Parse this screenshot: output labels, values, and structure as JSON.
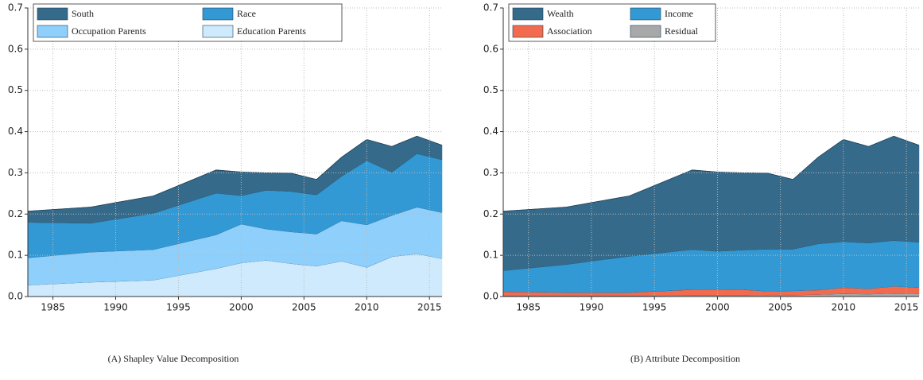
{
  "chart_data": [
    {
      "type": "area",
      "stacked": true,
      "caption": "(A) Shapley Value Decomposition",
      "x": [
        1983,
        1988,
        1993,
        1998,
        2000,
        2002,
        2004,
        2006,
        2008,
        2010,
        2012,
        2014,
        2016
      ],
      "xlim": [
        1983,
        2016
      ],
      "xticks": [
        1985,
        1990,
        1995,
        2000,
        2005,
        2010,
        2015
      ],
      "ylim": [
        0,
        0.7
      ],
      "yticks": [
        {
          "value": 0,
          "label": "0.0"
        },
        0.1,
        0.2,
        0.3,
        0.4,
        0.5,
        0.6,
        0.7
      ],
      "grid": true,
      "legend": "top-left",
      "series": [
        {
          "name": "Education Parents",
          "color": "#cfeafc",
          "values": [
            0.028,
            0.035,
            0.04,
            0.068,
            0.082,
            0.088,
            0.08,
            0.074,
            0.086,
            0.071,
            0.097,
            0.104,
            0.092
          ]
        },
        {
          "name": "Occupation Parents",
          "color": "#8fcffb",
          "values": [
            0.066,
            0.073,
            0.074,
            0.082,
            0.094,
            0.076,
            0.077,
            0.078,
            0.098,
            0.103,
            0.1,
            0.113,
            0.112
          ]
        },
        {
          "name": "Race",
          "color": "#3399d4",
          "values": [
            0.086,
            0.07,
            0.088,
            0.101,
            0.069,
            0.094,
            0.098,
            0.095,
            0.108,
            0.156,
            0.105,
            0.13,
            0.128
          ]
        },
        {
          "name": "South",
          "color": "#356a8a",
          "values": [
            0.027,
            0.039,
            0.042,
            0.056,
            0.057,
            0.042,
            0.044,
            0.037,
            0.046,
            0.051,
            0.062,
            0.042,
            0.035
          ]
        }
      ]
    },
    {
      "type": "area",
      "stacked": true,
      "caption": "(B) Attribute Decomposition",
      "x": [
        1983,
        1988,
        1993,
        1998,
        2000,
        2002,
        2004,
        2006,
        2008,
        2010,
        2012,
        2014,
        2016
      ],
      "xlim": [
        1983,
        2016
      ],
      "xticks": [
        1985,
        1990,
        1995,
        2000,
        2005,
        2010,
        2015
      ],
      "ylim": [
        0,
        0.7
      ],
      "yticks": [
        {
          "value": 0,
          "label": "0.0"
        },
        0.1,
        0.2,
        0.3,
        0.4,
        0.5,
        0.6,
        0.7
      ],
      "grid": true,
      "legend": "top-left",
      "series": [
        {
          "name": "Residual",
          "color": "#a8a8a8",
          "values": [
            0.002,
            0.002,
            0.002,
            0.003,
            0.003,
            0.003,
            0.004,
            0.004,
            0.005,
            0.007,
            0.006,
            0.008,
            0.007
          ]
        },
        {
          "name": "Association",
          "color": "#f36b4f",
          "values": [
            0.01,
            0.008,
            0.008,
            0.014,
            0.015,
            0.014,
            0.009,
            0.01,
            0.011,
            0.015,
            0.013,
            0.017,
            0.015
          ]
        },
        {
          "name": "Income",
          "color": "#3399d4",
          "values": [
            0.051,
            0.068,
            0.088,
            0.097,
            0.092,
            0.096,
            0.102,
            0.101,
            0.112,
            0.111,
            0.111,
            0.111,
            0.11
          ]
        },
        {
          "name": "Wealth",
          "color": "#356a8a",
          "values": [
            0.144,
            0.139,
            0.146,
            0.193,
            0.192,
            0.187,
            0.184,
            0.169,
            0.21,
            0.248,
            0.234,
            0.253,
            0.235
          ]
        }
      ]
    }
  ]
}
